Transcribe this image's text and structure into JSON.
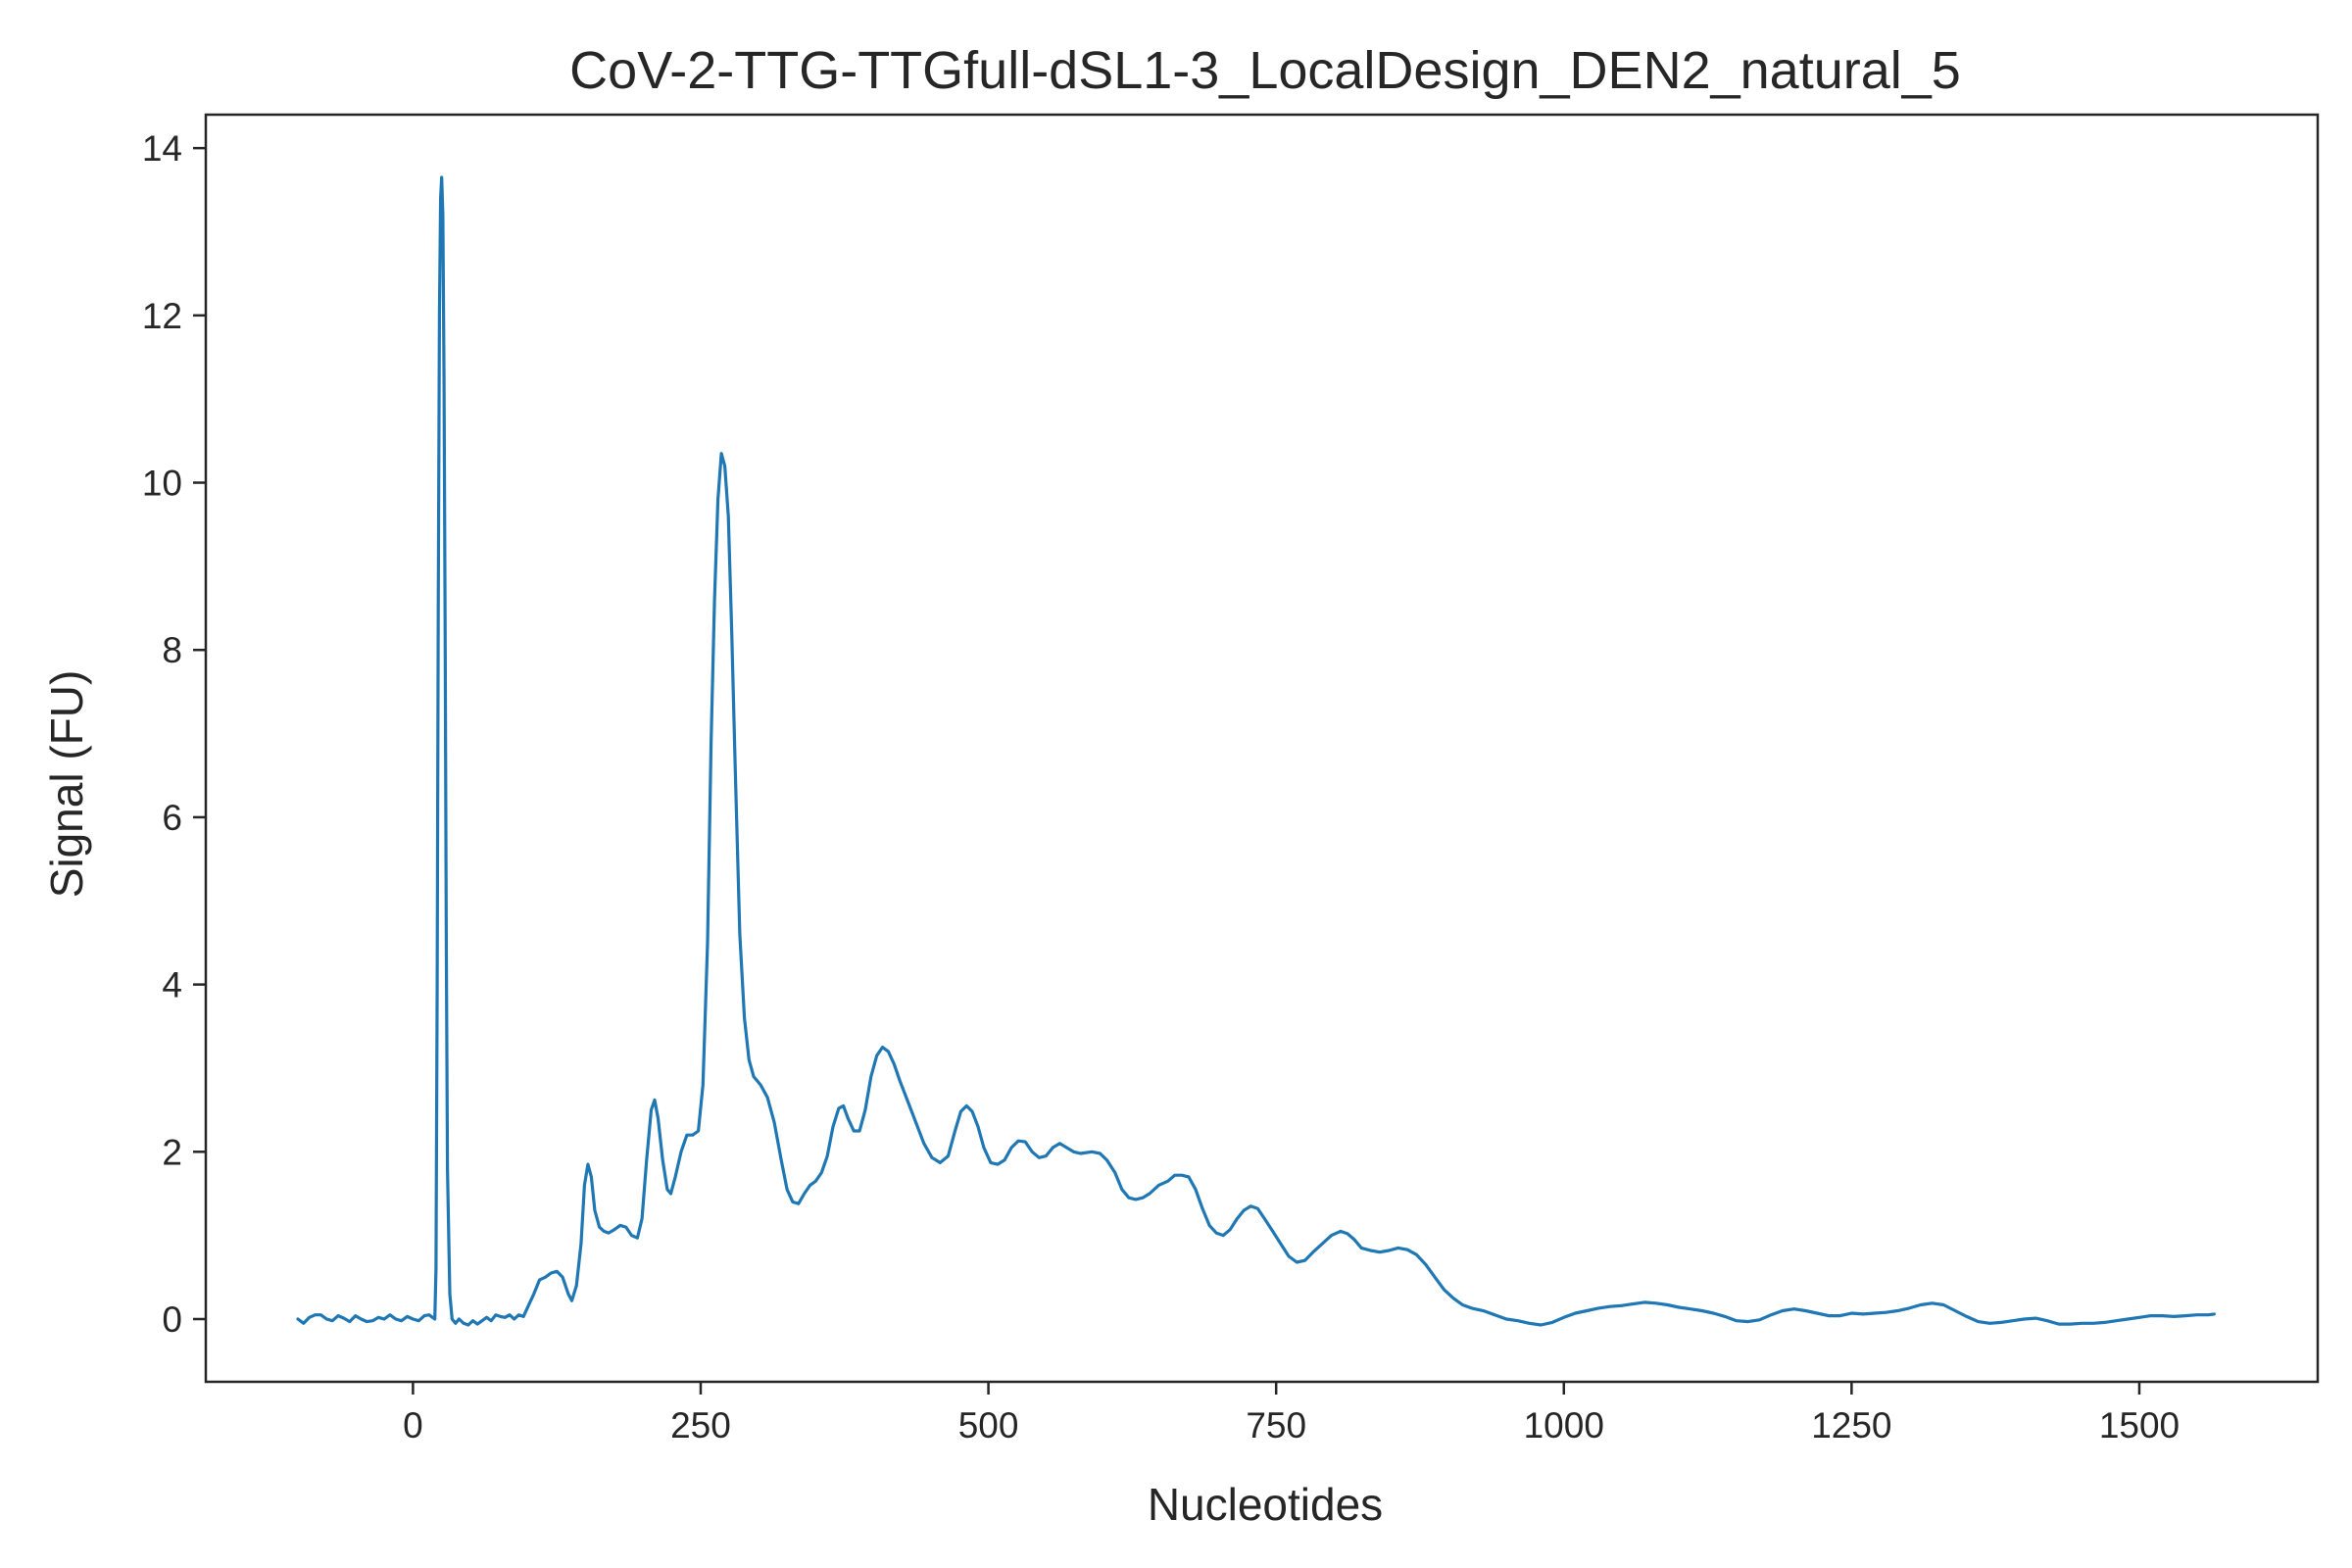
{
  "chart_data": {
    "type": "line",
    "title": "CoV-2-TTG-TTGfull-dSL1-3_LocalDesign_DEN2_natural_5",
    "xlabel": "Nucleotides",
    "ylabel": "Signal (FU)",
    "xlim": [
      -180,
      1655
    ],
    "ylim": [
      -0.75,
      14.4
    ],
    "xticks": [
      0,
      250,
      500,
      750,
      1000,
      1250,
      1500
    ],
    "yticks": [
      0,
      2,
      4,
      6,
      8,
      10,
      12,
      14
    ],
    "grid": false,
    "line_color": "#1f77b4",
    "series": [
      {
        "points": [
          [
            -100,
            0.0
          ],
          [
            -95,
            -0.05
          ],
          [
            -90,
            0.02
          ],
          [
            -85,
            0.05
          ],
          [
            -80,
            0.05
          ],
          [
            -75,
            0.0
          ],
          [
            -70,
            -0.02
          ],
          [
            -65,
            0.04
          ],
          [
            -60,
            0.01
          ],
          [
            -55,
            -0.03
          ],
          [
            -50,
            0.04
          ],
          [
            -45,
            0.0
          ],
          [
            -40,
            -0.03
          ],
          [
            -35,
            -0.02
          ],
          [
            -30,
            0.02
          ],
          [
            -25,
            0.0
          ],
          [
            -20,
            0.05
          ],
          [
            -15,
            0.0
          ],
          [
            -10,
            -0.02
          ],
          [
            -5,
            0.03
          ],
          [
            0,
            0.0
          ],
          [
            5,
            -0.02
          ],
          [
            10,
            0.04
          ],
          [
            14,
            0.05
          ],
          [
            17,
            0.02
          ],
          [
            19,
            0.0
          ],
          [
            20,
            0.6
          ],
          [
            21,
            4.0
          ],
          [
            22,
            8.5
          ],
          [
            23,
            12.0
          ],
          [
            24,
            13.4
          ],
          [
            25,
            13.65
          ],
          [
            26,
            13.2
          ],
          [
            27,
            11.2
          ],
          [
            28,
            8.0
          ],
          [
            29,
            4.5
          ],
          [
            30,
            1.8
          ],
          [
            32,
            0.3
          ],
          [
            34,
            0.0
          ],
          [
            37,
            -0.05
          ],
          [
            40,
            0.0
          ],
          [
            44,
            -0.05
          ],
          [
            48,
            -0.07
          ],
          [
            52,
            -0.02
          ],
          [
            56,
            -0.06
          ],
          [
            60,
            -0.02
          ],
          [
            64,
            0.02
          ],
          [
            68,
            -0.02
          ],
          [
            72,
            0.05
          ],
          [
            76,
            0.03
          ],
          [
            80,
            0.02
          ],
          [
            84,
            0.05
          ],
          [
            88,
            0.0
          ],
          [
            92,
            0.05
          ],
          [
            96,
            0.03
          ],
          [
            100,
            0.15
          ],
          [
            105,
            0.3
          ],
          [
            110,
            0.47
          ],
          [
            115,
            0.5
          ],
          [
            120,
            0.55
          ],
          [
            125,
            0.57
          ],
          [
            130,
            0.5
          ],
          [
            135,
            0.3
          ],
          [
            138,
            0.22
          ],
          [
            142,
            0.4
          ],
          [
            146,
            0.9
          ],
          [
            149,
            1.6
          ],
          [
            152,
            1.85
          ],
          [
            155,
            1.7
          ],
          [
            158,
            1.3
          ],
          [
            162,
            1.1
          ],
          [
            166,
            1.05
          ],
          [
            170,
            1.03
          ],
          [
            175,
            1.07
          ],
          [
            180,
            1.12
          ],
          [
            185,
            1.1
          ],
          [
            190,
            1.0
          ],
          [
            195,
            0.97
          ],
          [
            199,
            1.2
          ],
          [
            203,
            1.9
          ],
          [
            207,
            2.5
          ],
          [
            210,
            2.62
          ],
          [
            213,
            2.4
          ],
          [
            217,
            1.9
          ],
          [
            221,
            1.55
          ],
          [
            224,
            1.5
          ],
          [
            228,
            1.7
          ],
          [
            233,
            2.0
          ],
          [
            238,
            2.2
          ],
          [
            243,
            2.2
          ],
          [
            248,
            2.25
          ],
          [
            252,
            2.8
          ],
          [
            256,
            4.5
          ],
          [
            259,
            6.9
          ],
          [
            262,
            8.6
          ],
          [
            265,
            9.8
          ],
          [
            268,
            10.35
          ],
          [
            271,
            10.2
          ],
          [
            274,
            9.6
          ],
          [
            277,
            8.2
          ],
          [
            280,
            6.6
          ],
          [
            284,
            4.6
          ],
          [
            288,
            3.6
          ],
          [
            292,
            3.1
          ],
          [
            296,
            2.9
          ],
          [
            302,
            2.8
          ],
          [
            308,
            2.65
          ],
          [
            314,
            2.35
          ],
          [
            320,
            1.9
          ],
          [
            325,
            1.55
          ],
          [
            330,
            1.4
          ],
          [
            335,
            1.38
          ],
          [
            340,
            1.5
          ],
          [
            345,
            1.6
          ],
          [
            350,
            1.65
          ],
          [
            355,
            1.75
          ],
          [
            360,
            1.95
          ],
          [
            365,
            2.3
          ],
          [
            370,
            2.52
          ],
          [
            374,
            2.55
          ],
          [
            378,
            2.4
          ],
          [
            383,
            2.25
          ],
          [
            388,
            2.25
          ],
          [
            393,
            2.5
          ],
          [
            398,
            2.9
          ],
          [
            403,
            3.15
          ],
          [
            408,
            3.25
          ],
          [
            413,
            3.2
          ],
          [
            418,
            3.05
          ],
          [
            423,
            2.85
          ],
          [
            430,
            2.6
          ],
          [
            437,
            2.35
          ],
          [
            444,
            2.1
          ],
          [
            451,
            1.93
          ],
          [
            458,
            1.87
          ],
          [
            465,
            1.95
          ],
          [
            471,
            2.25
          ],
          [
            476,
            2.48
          ],
          [
            481,
            2.55
          ],
          [
            486,
            2.48
          ],
          [
            491,
            2.3
          ],
          [
            496,
            2.05
          ],
          [
            502,
            1.87
          ],
          [
            508,
            1.85
          ],
          [
            514,
            1.9
          ],
          [
            520,
            2.05
          ],
          [
            526,
            2.13
          ],
          [
            532,
            2.12
          ],
          [
            538,
            2.0
          ],
          [
            544,
            1.93
          ],
          [
            550,
            1.95
          ],
          [
            556,
            2.05
          ],
          [
            562,
            2.1
          ],
          [
            568,
            2.05
          ],
          [
            574,
            2.0
          ],
          [
            580,
            1.98
          ],
          [
            590,
            2.0
          ],
          [
            597,
            1.98
          ],
          [
            603,
            1.9
          ],
          [
            610,
            1.75
          ],
          [
            616,
            1.55
          ],
          [
            622,
            1.45
          ],
          [
            628,
            1.43
          ],
          [
            634,
            1.45
          ],
          [
            640,
            1.5
          ],
          [
            648,
            1.6
          ],
          [
            656,
            1.65
          ],
          [
            662,
            1.72
          ],
          [
            668,
            1.72
          ],
          [
            674,
            1.7
          ],
          [
            680,
            1.55
          ],
          [
            686,
            1.32
          ],
          [
            692,
            1.12
          ],
          [
            698,
            1.03
          ],
          [
            704,
            1.0
          ],
          [
            710,
            1.07
          ],
          [
            716,
            1.2
          ],
          [
            722,
            1.3
          ],
          [
            728,
            1.35
          ],
          [
            734,
            1.32
          ],
          [
            740,
            1.2
          ],
          [
            747,
            1.05
          ],
          [
            754,
            0.9
          ],
          [
            761,
            0.75
          ],
          [
            768,
            0.68
          ],
          [
            775,
            0.7
          ],
          [
            782,
            0.8
          ],
          [
            790,
            0.9
          ],
          [
            798,
            1.0
          ],
          [
            806,
            1.05
          ],
          [
            812,
            1.02
          ],
          [
            818,
            0.95
          ],
          [
            824,
            0.85
          ],
          [
            832,
            0.82
          ],
          [
            840,
            0.8
          ],
          [
            848,
            0.82
          ],
          [
            856,
            0.85
          ],
          [
            864,
            0.83
          ],
          [
            872,
            0.77
          ],
          [
            880,
            0.65
          ],
          [
            888,
            0.5
          ],
          [
            896,
            0.35
          ],
          [
            904,
            0.25
          ],
          [
            912,
            0.17
          ],
          [
            920,
            0.13
          ],
          [
            930,
            0.1
          ],
          [
            940,
            0.05
          ],
          [
            950,
            0.0
          ],
          [
            960,
            -0.02
          ],
          [
            970,
            -0.05
          ],
          [
            980,
            -0.07
          ],
          [
            990,
            -0.04
          ],
          [
            1000,
            0.02
          ],
          [
            1010,
            0.07
          ],
          [
            1020,
            0.1
          ],
          [
            1030,
            0.13
          ],
          [
            1040,
            0.15
          ],
          [
            1050,
            0.16
          ],
          [
            1060,
            0.18
          ],
          [
            1070,
            0.2
          ],
          [
            1080,
            0.19
          ],
          [
            1090,
            0.17
          ],
          [
            1100,
            0.14
          ],
          [
            1110,
            0.12
          ],
          [
            1120,
            0.1
          ],
          [
            1130,
            0.07
          ],
          [
            1140,
            0.03
          ],
          [
            1150,
            -0.02
          ],
          [
            1160,
            -0.03
          ],
          [
            1170,
            -0.01
          ],
          [
            1180,
            0.05
          ],
          [
            1190,
            0.1
          ],
          [
            1200,
            0.12
          ],
          [
            1210,
            0.1
          ],
          [
            1220,
            0.07
          ],
          [
            1230,
            0.04
          ],
          [
            1240,
            0.04
          ],
          [
            1250,
            0.07
          ],
          [
            1260,
            0.06
          ],
          [
            1270,
            0.07
          ],
          [
            1280,
            0.08
          ],
          [
            1290,
            0.1
          ],
          [
            1300,
            0.13
          ],
          [
            1310,
            0.17
          ],
          [
            1320,
            0.19
          ],
          [
            1330,
            0.17
          ],
          [
            1340,
            0.1
          ],
          [
            1350,
            0.03
          ],
          [
            1360,
            -0.03
          ],
          [
            1370,
            -0.05
          ],
          [
            1380,
            -0.04
          ],
          [
            1390,
            -0.02
          ],
          [
            1400,
            0.0
          ],
          [
            1410,
            0.01
          ],
          [
            1420,
            -0.02
          ],
          [
            1430,
            -0.06
          ],
          [
            1440,
            -0.06
          ],
          [
            1450,
            -0.05
          ],
          [
            1460,
            -0.05
          ],
          [
            1470,
            -0.04
          ],
          [
            1480,
            -0.02
          ],
          [
            1490,
            0.0
          ],
          [
            1500,
            0.02
          ],
          [
            1510,
            0.04
          ],
          [
            1520,
            0.04
          ],
          [
            1530,
            0.03
          ],
          [
            1540,
            0.04
          ],
          [
            1550,
            0.05
          ],
          [
            1560,
            0.05
          ],
          [
            1565,
            0.06
          ]
        ]
      }
    ]
  }
}
